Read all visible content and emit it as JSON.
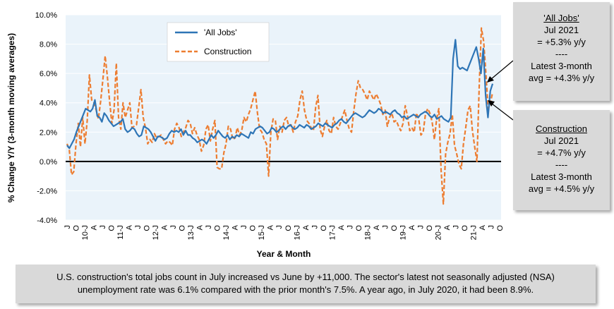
{
  "chart_data": {
    "type": "line",
    "xlabel": "Year & Month",
    "ylabel": "% Change Y/Y (3-month moving averages)",
    "ylim": [
      -4,
      10
    ],
    "y_ticks": [
      "-4.0%",
      "-2.0%",
      "0.0%",
      "2.0%",
      "4.0%",
      "6.0%",
      "8.0%",
      "10.0%"
    ],
    "x_tick_labels": [
      "J",
      "O",
      "10-J",
      "A",
      "J",
      "O",
      "11-J",
      "A",
      "J",
      "O",
      "12-J",
      "A",
      "J",
      "O",
      "13-J",
      "A",
      "J",
      "O",
      "14-J",
      "A",
      "J",
      "O",
      "15-J",
      "A",
      "J",
      "O",
      "16-J",
      "A",
      "J",
      "O",
      "17-J",
      "A",
      "J",
      "O",
      "18-J",
      "A",
      "J",
      "O",
      "19-J",
      "A",
      "J",
      "O",
      "20-J",
      "A",
      "J",
      "O",
      "21-J",
      "A",
      "J",
      "O"
    ],
    "legend": {
      "placement": "top-left",
      "entries": [
        "'All Jobs'",
        "Construction"
      ]
    },
    "series": [
      {
        "name": "'All Jobs'",
        "color": "#2e75b6",
        "style": "solid",
        "values": [
          1.1,
          0.9,
          1.2,
          1.5,
          2.0,
          2.4,
          2.8,
          3.2,
          3.6,
          3.5,
          3.4,
          3.6,
          4.2,
          3.1,
          3.0,
          2.7,
          3.3,
          3.1,
          2.8,
          2.6,
          2.4,
          2.5,
          2.6,
          2.7,
          2.9,
          2.2,
          2.0,
          2.1,
          2.3,
          2.2,
          1.9,
          1.7,
          1.8,
          2.4,
          2.3,
          2.2,
          2.0,
          1.7,
          1.4,
          1.7,
          1.7,
          1.6,
          1.5,
          1.6,
          1.9,
          2.1,
          2.0,
          2.1,
          2.0,
          2.2,
          1.8,
          2.1,
          1.8,
          1.8,
          1.6,
          1.5,
          1.3,
          1.4,
          1.5,
          1.4,
          1.2,
          1.5,
          1.8,
          1.6,
          1.8,
          2.1,
          1.9,
          1.7,
          1.6,
          1.8,
          1.5,
          1.7,
          1.6,
          1.8,
          1.7,
          1.9,
          1.8,
          1.7,
          1.6,
          2.0,
          1.9,
          2.2,
          2.3,
          2.4,
          2.3,
          2.1,
          1.9,
          2.0,
          2.3,
          2.2,
          2.0,
          2.1,
          2.3,
          2.4,
          2.2,
          2.4,
          2.5,
          2.3,
          2.2,
          2.3,
          2.5,
          2.4,
          2.3,
          2.5,
          2.4,
          2.2,
          2.3,
          2.4,
          2.6,
          2.5,
          2.4,
          2.6,
          2.5,
          2.4,
          2.3,
          2.5,
          2.6,
          2.8,
          2.9,
          2.7,
          2.6,
          2.8,
          3.0,
          3.2,
          3.3,
          3.2,
          3.1,
          3.0,
          3.1,
          3.3,
          3.5,
          3.4,
          3.3,
          3.4,
          3.6,
          3.5,
          3.3,
          3.4,
          3.3,
          3.2,
          3.4,
          3.5,
          3.3,
          3.2,
          3.0,
          3.1,
          2.9,
          3.0,
          3.1,
          3.2,
          3.1,
          3.0,
          3.2,
          3.3,
          3.4,
          3.3,
          3.1,
          3.0,
          3.2,
          2.9,
          3.0,
          3.1,
          2.9,
          2.8,
          2.7,
          3.0,
          7.0,
          8.3,
          6.5,
          6.3,
          6.4,
          6.3,
          6.2,
          6.6,
          7.0,
          7.4,
          7.8,
          7.0,
          6.0,
          7.7,
          4.5,
          3.0,
          4.8,
          5.3
        ]
      },
      {
        "name": "Construction",
        "color": "#ed7d31",
        "style": "dashed",
        "values": [
          1.2,
          0.8,
          -0.9,
          -0.7,
          1.2,
          2.6,
          1.0,
          3.0,
          1.2,
          2.8,
          5.9,
          4.2,
          4.0,
          3.5,
          2.9,
          4.1,
          5.6,
          7.2,
          5.8,
          4.1,
          2.6,
          3.5,
          6.7,
          3.0,
          2.2,
          4.0,
          3.0,
          3.5,
          4.0,
          2.3,
          2.4,
          2.5,
          3.7,
          4.9,
          3.0,
          2.3,
          1.2,
          1.5,
          1.3,
          1.9,
          1.6,
          1.7,
          1.8,
          1.5,
          1.2,
          1.4,
          1.3,
          1.1,
          2.2,
          2.6,
          2.3,
          1.7,
          2.0,
          2.3,
          2.8,
          2.6,
          1.9,
          2.3,
          1.8,
          1.5,
          0.7,
          1.1,
          2.2,
          2.5,
          1.4,
          2.2,
          2.8,
          -0.4,
          -0.5,
          -0.5,
          0.6,
          1.2,
          2.4,
          2.2,
          1.5,
          1.6,
          2.3,
          1.8,
          2.1,
          3.0,
          2.7,
          3.2,
          3.6,
          4.2,
          4.8,
          3.3,
          2.2,
          2.0,
          1.5,
          1.2,
          -1.0,
          2.0,
          2.9,
          2.8,
          1.5,
          2.4,
          2.0,
          2.8,
          3.0,
          2.4,
          2.5,
          2.0,
          2.7,
          3.1,
          4.2,
          4.8,
          3.5,
          2.8,
          2.6,
          2.3,
          2.1,
          3.7,
          4.5,
          2.2,
          1.7,
          2.4,
          2.8,
          2.1,
          1.9,
          3.0,
          2.4,
          2.2,
          2.6,
          3.1,
          3.5,
          2.8,
          2.2,
          2.0,
          3.4,
          4.6,
          5.5,
          5.0,
          4.9,
          4.6,
          4.2,
          4.8,
          4.5,
          4.2,
          4.6,
          4.3,
          3.9,
          3.2,
          3.5,
          2.4,
          3.0,
          3.3,
          2.7,
          2.8,
          2.4,
          2.1,
          2.6,
          3.8,
          3.1,
          2.1,
          2.3,
          2.0,
          3.3,
          2.9,
          1.8,
          2.0,
          3.2,
          3.6,
          3.3,
          2.7,
          1.5,
          2.9,
          3.6,
          -0.6,
          -2.9,
          0.5,
          1.3,
          1.9,
          3.2,
          1.1,
          0.5,
          -0.2,
          -0.5,
          1.2,
          2.3,
          3.5,
          3.8,
          2.1,
          1.0,
          0.0,
          5.1,
          9.1,
          8.2,
          6.0,
          3.6,
          4.0,
          4.7
        ]
      }
    ]
  },
  "callouts": {
    "all_jobs": {
      "title": "'All Jobs'",
      "lines": [
        "Jul 2021",
        "= +5.3% y/y",
        "----",
        "Latest 3-month",
        "avg = +4.3% y/y"
      ]
    },
    "construction": {
      "title": "Construction",
      "lines": [
        "Jul 2021",
        "= +4.7% y/y",
        "----",
        "Latest 3-month",
        "avg = +4.5% y/y"
      ]
    }
  },
  "footnote": {
    "line1": "U.S. construction's total jobs count in July increased vs June by +11,000. The sector's latest not seasonally adjusted (NSA)",
    "line2": "unemployment rate was 6.1% compared with the prior month's 7.5%. A year ago, in July 2020, it had been 8.9%."
  }
}
